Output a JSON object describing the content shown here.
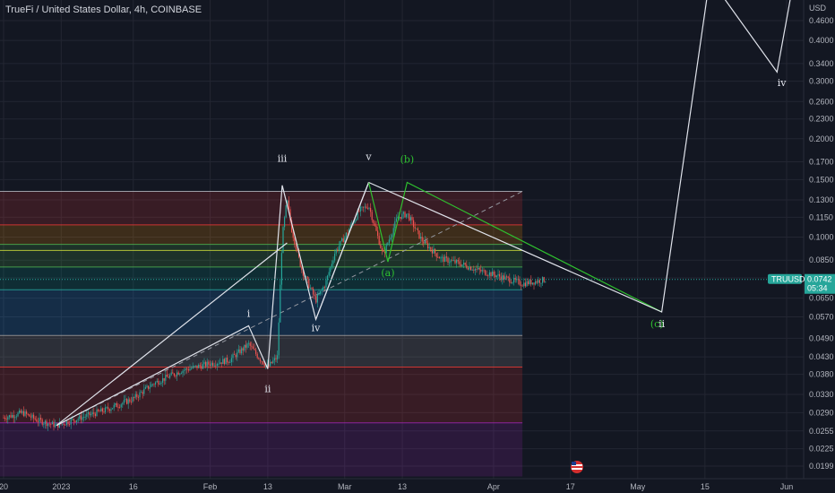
{
  "chart_title": "TrueFi / United States Dollar, 4h, COINBASE",
  "chart_data": {
    "type": "candlestick",
    "symbol": "TRUUSD",
    "exchange": "COINBASE",
    "interval": "4h",
    "currency_label": "USD",
    "y_scale": "log",
    "ylim": [
      0.0185,
      0.56
    ],
    "y_ticks": [
      "0.4600",
      "0.4000",
      "0.3400",
      "0.3000",
      "0.2600",
      "0.2300",
      "0.2000",
      "0.1700",
      "0.1500",
      "0.1300",
      "0.1150",
      "0.1000",
      "0.0850",
      "0.0750",
      "0.0650",
      "0.0570",
      "0.0490",
      "0.0430",
      "0.0380",
      "0.0330",
      "0.0290",
      "0.0255",
      "0.0225",
      "0.0199"
    ],
    "x_ticks": [
      "20",
      "2023",
      "16",
      "Feb",
      "13",
      "Mar",
      "13",
      "Apr",
      "17",
      "May",
      "15",
      "Jun"
    ],
    "x_tick_values": [
      "2022-12-20",
      "2023-01-01",
      "2023-01-16",
      "2023-02-01",
      "2023-02-13",
      "2023-03-01",
      "2023-03-13",
      "2023-04-01",
      "2023-04-17",
      "2023-05-01",
      "2023-05-15",
      "2023-06-01"
    ],
    "last_price": {
      "value": "0.0742",
      "countdown": "05:34",
      "tag": "TRUUSD",
      "color": "#26a69a"
    },
    "colors": {
      "up": "#26a69a",
      "down": "#ef5350",
      "grid": "#232632",
      "text": "#b2b5be"
    },
    "price_path": [
      [
        "2022-12-20",
        0.028
      ],
      [
        "2022-12-24",
        0.029
      ],
      [
        "2022-12-27",
        0.0275
      ],
      [
        "2022-12-31",
        0.0265
      ],
      [
        "2023-01-05",
        0.028
      ],
      [
        "2023-01-10",
        0.0295
      ],
      [
        "2023-01-16",
        0.032
      ],
      [
        "2023-01-20",
        0.0355
      ],
      [
        "2023-01-26",
        0.039
      ],
      [
        "2023-02-01",
        0.041
      ],
      [
        "2023-02-05",
        0.042
      ],
      [
        "2023-02-09",
        0.047
      ],
      [
        "2023-02-11",
        0.043
      ],
      [
        "2023-02-13",
        0.04
      ],
      [
        "2023-02-15",
        0.043
      ],
      [
        "2023-02-16",
        0.1
      ],
      [
        "2023-02-17",
        0.13
      ],
      [
        "2023-02-18",
        0.105
      ],
      [
        "2023-02-20",
        0.08
      ],
      [
        "2023-02-23",
        0.064
      ],
      [
        "2023-02-25",
        0.072
      ],
      [
        "2023-02-27",
        0.09
      ],
      [
        "2023-03-01",
        0.1
      ],
      [
        "2023-03-04",
        0.12
      ],
      [
        "2023-03-06",
        0.125
      ],
      [
        "2023-03-09",
        0.088
      ],
      [
        "2023-03-12",
        0.115
      ],
      [
        "2023-03-14",
        0.118
      ],
      [
        "2023-03-17",
        0.098
      ],
      [
        "2023-03-21",
        0.086
      ],
      [
        "2023-03-25",
        0.083
      ],
      [
        "2023-03-29",
        0.079
      ],
      [
        "2023-04-02",
        0.076
      ],
      [
        "2023-04-07",
        0.072
      ],
      [
        "2023-04-12",
        0.0742
      ]
    ],
    "fib_levels": [
      {
        "price": 0.138,
        "color": "#b2b5be"
      },
      {
        "price": 0.109,
        "color": "#e53935"
      },
      {
        "price": 0.095,
        "color": "#4caf50"
      },
      {
        "price": 0.091,
        "color": "#cddc39"
      },
      {
        "price": 0.081,
        "color": "#4caf50"
      },
      {
        "price": 0.069,
        "color": "#26a69a"
      },
      {
        "price": 0.05,
        "color": "#9e9e9e"
      },
      {
        "price": 0.04,
        "color": "#e53935"
      },
      {
        "price": 0.027,
        "color": "#9c27b0"
      }
    ],
    "fib_zones": [
      {
        "from": 0.138,
        "to": 0.109,
        "color": "#e53935"
      },
      {
        "from": 0.109,
        "to": 0.095,
        "color": "#ff9800"
      },
      {
        "from": 0.095,
        "to": 0.091,
        "color": "#4caf50"
      },
      {
        "from": 0.091,
        "to": 0.081,
        "color": "#4caf50"
      },
      {
        "from": 0.081,
        "to": 0.069,
        "color": "#009688"
      },
      {
        "from": 0.069,
        "to": 0.05,
        "color": "#2196f3"
      },
      {
        "from": 0.05,
        "to": 0.04,
        "color": "#9e9e9e"
      },
      {
        "from": 0.04,
        "to": 0.027,
        "color": "#e53935"
      },
      {
        "from": 0.027,
        "to": 0.0185,
        "color": "#9c27b0"
      }
    ],
    "fib_span": [
      "2023-01-12",
      "2023-04-07"
    ],
    "trend_line": [
      [
        "2022-12-31",
        0.0265
      ],
      [
        "2023-04-07",
        0.138
      ]
    ],
    "wave_lines": [
      {
        "color": "#e0e3eb",
        "points": [
          [
            "2022-12-31",
            0.0265
          ],
          [
            "2023-02-09",
            0.0535
          ],
          [
            "2023-02-13",
            0.0395
          ],
          [
            "2023-02-16",
            0.144
          ],
          [
            "2023-02-23",
            0.056
          ],
          [
            "2023-03-06",
            0.147
          ]
        ]
      },
      {
        "color": "#e0e3eb",
        "points": [
          [
            "2022-12-31",
            0.0265
          ],
          [
            "2023-02-17",
            0.096
          ]
        ]
      },
      {
        "color": "#e0e3eb",
        "points": [
          [
            "2023-02-23",
            0.056
          ],
          [
            "2023-03-06",
            0.147
          ]
        ]
      },
      {
        "color": "#2fc12f",
        "points": [
          [
            "2023-03-06",
            0.147
          ],
          [
            "2023-03-10",
            0.084
          ],
          [
            "2023-03-14",
            0.147
          ],
          [
            "2023-05-06",
            0.059
          ]
        ]
      },
      {
        "color": "#e0e3eb",
        "points": [
          [
            "2023-03-06",
            0.147
          ],
          [
            "2023-05-06",
            0.059
          ],
          [
            "2023-05-16",
            0.62
          ],
          [
            "2023-05-30",
            0.32
          ],
          [
            "2023-06-02",
            0.56
          ]
        ]
      }
    ],
    "annotations": [
      {
        "text": "i",
        "x": "2023-02-09",
        "y": 0.057,
        "color": "white"
      },
      {
        "text": "ii",
        "x": "2023-02-13",
        "y": 0.0335,
        "color": "white"
      },
      {
        "text": "iii",
        "x": "2023-02-16",
        "y": 0.17,
        "color": "white"
      },
      {
        "text": "iv",
        "x": "2023-02-23",
        "y": 0.0515,
        "color": "white"
      },
      {
        "text": "v",
        "x": "2023-03-06",
        "y": 0.172,
        "color": "white"
      },
      {
        "text": "(a)",
        "x": "2023-03-10",
        "y": 0.076,
        "color": "green"
      },
      {
        "text": "(b)",
        "x": "2023-03-14",
        "y": 0.169,
        "color": "green"
      },
      {
        "text": "(c)",
        "x": "2023-05-05",
        "y": 0.053,
        "color": "green"
      },
      {
        "text": "ii",
        "x": "2023-05-06",
        "y": 0.053,
        "color": "white"
      },
      {
        "text": "iv",
        "x": "2023-05-31",
        "y": 0.29,
        "color": "white"
      }
    ]
  }
}
